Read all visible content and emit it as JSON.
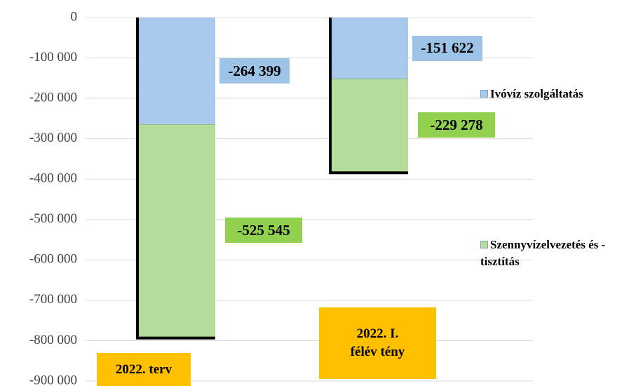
{
  "chart_data": {
    "type": "stacked-bar",
    "categories": [
      "2022. terv",
      "2022. I. félév tény"
    ],
    "series": [
      {
        "name": "Ivóvíz szolgáltatás",
        "color": "#a9c9ec",
        "label_color": "#9dc3e6",
        "values": [
          -264399,
          -151622
        ],
        "value_labels": [
          "-264 399",
          "-151 622"
        ]
      },
      {
        "name": "Szennyvízelvezetés és - tisztítás",
        "color": "#b5dc9b",
        "label_color": "#92d050",
        "values": [
          -525545,
          -229278
        ],
        "value_labels": [
          "-525 545",
          "-229 278"
        ]
      }
    ],
    "ylim": [
      -900000,
      0
    ],
    "yticks": [
      0,
      {
        "value": -100000,
        "label": "-100 000"
      },
      {
        "value": -200000,
        "label": "-200 000"
      },
      {
        "value": -300000,
        "label": "-300 000"
      },
      {
        "value": -400000,
        "label": "-400 000"
      },
      {
        "value": -500000,
        "label": "-500 000"
      },
      {
        "value": -600000,
        "label": "-600 000"
      },
      {
        "value": -700000,
        "label": "-700 000"
      },
      {
        "value": -800000,
        "label": "-800 000"
      },
      {
        "value": -900000,
        "label": "-900 000"
      }
    ],
    "grid": true,
    "category_label_color": "#ffc000"
  }
}
